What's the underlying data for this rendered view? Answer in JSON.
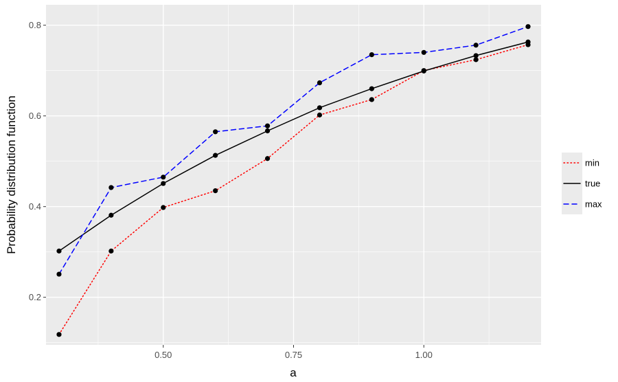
{
  "chart_data": {
    "type": "line",
    "xlabel": "a",
    "ylabel": "Probability distribution function",
    "xlim": [
      0.275,
      1.225
    ],
    "ylim": [
      0.095,
      0.845
    ],
    "x_ticks": [
      0.5,
      0.75,
      1.0
    ],
    "x_tick_labels": [
      "0.50",
      "0.75",
      "1.00"
    ],
    "y_ticks": [
      0.2,
      0.4,
      0.6,
      0.8
    ],
    "y_tick_labels": [
      "0.2",
      "0.4",
      "0.6",
      "0.8"
    ],
    "x_minor_ticks": [
      0.375,
      0.625,
      0.875,
      1.125
    ],
    "y_minor_ticks": [
      0.1,
      0.3,
      0.5,
      0.7
    ],
    "grid": true,
    "legend_position": "right",
    "x": [
      0.3,
      0.4,
      0.5,
      0.6,
      0.7,
      0.8,
      0.9,
      1.0,
      1.1,
      1.2
    ],
    "series": [
      {
        "name": "min",
        "color": "#ff0000",
        "dash": "dotted",
        "values": [
          0.118,
          0.302,
          0.398,
          0.435,
          0.506,
          0.602,
          0.636,
          0.7,
          0.724,
          0.757
        ]
      },
      {
        "name": "true",
        "color": "#000000",
        "dash": "solid",
        "values": [
          0.302,
          0.381,
          0.451,
          0.513,
          0.567,
          0.618,
          0.66,
          0.699,
          0.733,
          0.763
        ]
      },
      {
        "name": "max",
        "color": "#0000ff",
        "dash": "dashed",
        "values": [
          0.251,
          0.442,
          0.465,
          0.565,
          0.578,
          0.673,
          0.735,
          0.74,
          0.756,
          0.797
        ]
      }
    ]
  }
}
